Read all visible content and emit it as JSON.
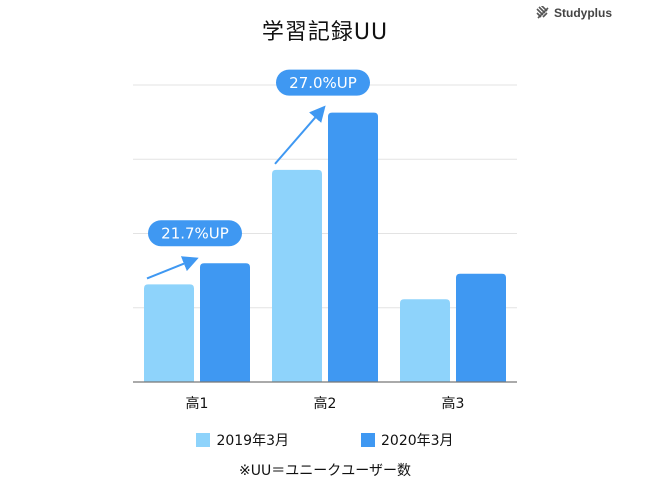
{
  "brand": {
    "name": "Studyplus",
    "icon": "studyplus-logo-icon"
  },
  "chart_data": {
    "type": "bar",
    "title": "学習記録UU",
    "categories": [
      "高1",
      "高2",
      "高3"
    ],
    "series": [
      {
        "name": "2019年3月",
        "values": [
          46,
          100,
          39
        ],
        "color": "#8ed3fb"
      },
      {
        "name": "2020年3月",
        "values": [
          56,
          127,
          51
        ],
        "color": "#3f98f2"
      }
    ],
    "ylim": [
      0,
      140
    ],
    "grid": true,
    "legend": "bottom",
    "annotations": [
      {
        "category": "高1",
        "text": "21.7%UP"
      },
      {
        "category": "高2",
        "text": "27.0%UP"
      }
    ],
    "annotation_color": "#3f98f2"
  },
  "footnote": "※UU＝ユニークユーザー数"
}
